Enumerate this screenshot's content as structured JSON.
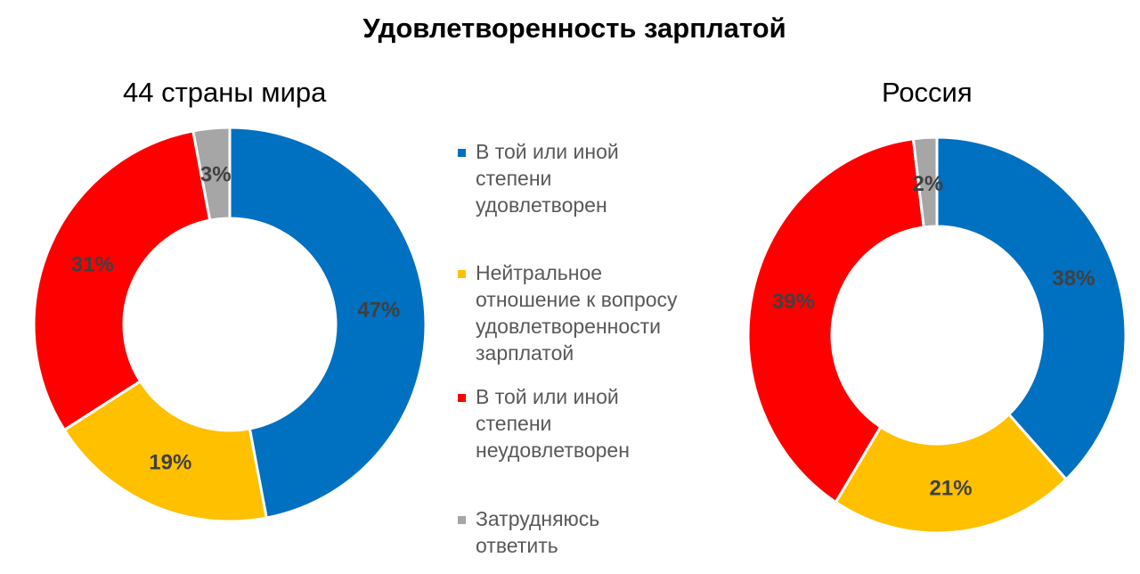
{
  "title": "Удовлетворенность зарплатой",
  "legend": [
    {
      "label": "В той или иной\nстепени\nудовлетворен",
      "color": "#0070C0"
    },
    {
      "label": "Нейтральное\nотношение к вопросу\nудовлетворенности\nзарплатой",
      "color": "#FFC000"
    },
    {
      "label": "В той или иной\nстепени\nнеудовлетворен",
      "color": "#FF0000"
    },
    {
      "label": "Затрудняюсь\nответить",
      "color": "#A6A6A6"
    }
  ],
  "chart_data": [
    {
      "type": "pie",
      "subtype": "donut",
      "title": "44 страны мира",
      "categories": [
        "В той или иной степени удовлетворен",
        "Нейтральное отношение к вопросу удовлетворенности зарплатой",
        "В той или иной степени неудовлетворен",
        "Затрудняюсь ответить"
      ],
      "values": [
        47,
        19,
        31,
        3
      ],
      "data_labels": [
        "47%",
        "19%",
        "31%",
        "3%"
      ],
      "colors": [
        "#0070C0",
        "#FFC000",
        "#FF0000",
        "#A6A6A6"
      ]
    },
    {
      "type": "pie",
      "subtype": "donut",
      "title": "Россия",
      "categories": [
        "В той или иной степени удовлетворен",
        "Нейтральное отношение к вопросу удовлетворенности зарплатой",
        "В той или иной степени неудовлетворен",
        "Затрудняюсь ответить"
      ],
      "values": [
        38,
        21,
        39,
        2
      ],
      "data_labels": [
        "38%",
        "21%",
        "39%",
        "2%"
      ],
      "colors": [
        "#0070C0",
        "#FFC000",
        "#FF0000",
        "#A6A6A6"
      ]
    }
  ]
}
